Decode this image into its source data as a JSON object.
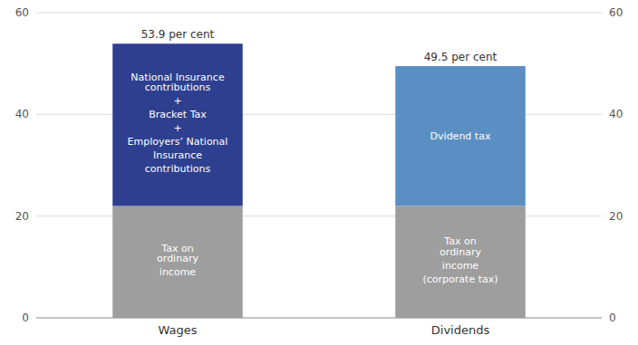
{
  "chart_data": {
    "type": "bar",
    "stacked": true,
    "categories": [
      "Wages",
      "Dividends"
    ],
    "series": [
      {
        "values": [
          22.0,
          22.0
        ],
        "color": "#9e9e9e",
        "labels": [
          "Tax on\nordinary\nincome",
          "Tax on\nordinary\nincome\n(corporate tax)"
        ]
      },
      {
        "values": [
          31.9,
          27.5
        ],
        "colors": [
          "#2e3f8f",
          "#5b8fc4"
        ],
        "labels": [
          "National Insurance\ncontributions\n+\nBracket Tax\n+\nEmployers’ National\nInsurance\ncontributions",
          "Dvidend tax"
        ]
      }
    ],
    "totals": [
      53.9,
      49.5
    ],
    "total_labels": [
      "53.9 per cent",
      "49.5 per cent"
    ],
    "ylim": [
      0,
      60
    ],
    "yticks": [
      0,
      20,
      40,
      60
    ],
    "grid": true
  }
}
